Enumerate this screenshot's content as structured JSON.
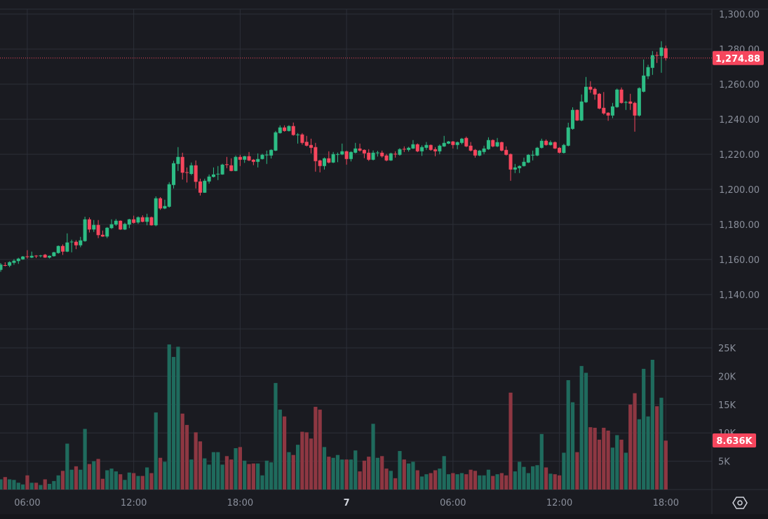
{
  "chart_data": {
    "type": "candlestick",
    "interval": "15m",
    "price_axis": {
      "ticks": [
        "1,300.00",
        "1,280.00",
        "1,260.00",
        "1,240.00",
        "1,220.00",
        "1,200.00",
        "1,180.00",
        "1,160.00",
        "1,140.00"
      ],
      "tick_values": [
        1300,
        1280,
        1260,
        1240,
        1220,
        1200,
        1180,
        1160,
        1140
      ]
    },
    "volume_axis": {
      "ticks": [
        "25K",
        "20K",
        "15K",
        "10K",
        "5K"
      ],
      "tick_values": [
        25,
        20,
        15,
        10,
        5
      ],
      "unit": "K"
    },
    "time_axis": {
      "ticks": [
        "06:00",
        "12:00",
        "18:00",
        "7",
        "06:00",
        "12:00",
        "18:00"
      ],
      "tick_candle_index": [
        6,
        30,
        54,
        78,
        102,
        126,
        150
      ]
    },
    "last_price": 1274.88,
    "last_price_label": "1,274.88",
    "last_volume_label": "8.636K",
    "colors": {
      "up": "#2dbd85",
      "down": "#f6465d",
      "vol_up": "#1f6b5d",
      "vol_down": "#8e3742",
      "background": "#1a1b21",
      "grid": "#2c2f38"
    },
    "candles_ohlc": [
      [
        1154.1,
        1158,
        1153,
        1157.1
      ],
      [
        1156.8,
        1158.4,
        1156.1,
        1156.5
      ],
      [
        1156.5,
        1159,
        1155.6,
        1158.5
      ],
      [
        1158.1,
        1160.2,
        1157,
        1159.3
      ],
      [
        1159.1,
        1161,
        1157.5,
        1160.5
      ],
      [
        1160.1,
        1162,
        1159.8,
        1161.7
      ],
      [
        1161.8,
        1165.3,
        1160.5,
        1161.5
      ],
      [
        1161.1,
        1164.5,
        1160.8,
        1162.1
      ],
      [
        1162.2,
        1162.5,
        1160.8,
        1161.8
      ],
      [
        1162.0,
        1162.6,
        1161.2,
        1162.3
      ],
      [
        1162.7,
        1163.2,
        1160.9,
        1161.1
      ],
      [
        1161.1,
        1162.3,
        1160.6,
        1162.1
      ],
      [
        1161.9,
        1164.4,
        1161.6,
        1164.1
      ],
      [
        1163.7,
        1168,
        1163.3,
        1167.7
      ],
      [
        1167.7,
        1168.6,
        1162.6,
        1164.5
      ],
      [
        1164.5,
        1174.9,
        1164.2,
        1169.7
      ],
      [
        1170.0,
        1171.3,
        1164.1,
        1170.2
      ],
      [
        1170.1,
        1171,
        1165.9,
        1168.1
      ],
      [
        1168.1,
        1172.9,
        1167,
        1170.9
      ],
      [
        1170.5,
        1184.4,
        1170.1,
        1182.9
      ],
      [
        1182.9,
        1184,
        1175.4,
        1177.1
      ],
      [
        1177.1,
        1182.5,
        1175.7,
        1179.7
      ],
      [
        1179.7,
        1182.5,
        1172.2,
        1173.9
      ],
      [
        1174.1,
        1176.5,
        1172.9,
        1173.1
      ],
      [
        1173.1,
        1178.5,
        1172.2,
        1178.1
      ],
      [
        1177.9,
        1182.9,
        1177.4,
        1180.1
      ],
      [
        1179.9,
        1183.1,
        1179.2,
        1182.1
      ],
      [
        1182.1,
        1182.3,
        1176.9,
        1177.1
      ],
      [
        1177.1,
        1181,
        1176.8,
        1180.3
      ],
      [
        1179.9,
        1183.2,
        1177.9,
        1182.9
      ],
      [
        1182.9,
        1185,
        1180.5,
        1180.9
      ],
      [
        1181.1,
        1184.6,
        1180.3,
        1184.1
      ],
      [
        1184.1,
        1185.2,
        1181.2,
        1181.5
      ],
      [
        1181.5,
        1186.1,
        1179.5,
        1184.1
      ],
      [
        1184.1,
        1184.5,
        1179.3,
        1179.5
      ],
      [
        1179.5,
        1196,
        1179,
        1194.9
      ],
      [
        1194.9,
        1195.6,
        1188.3,
        1189.1
      ],
      [
        1189.1,
        1194.1,
        1188.7,
        1190.5
      ],
      [
        1190.1,
        1204.1,
        1189.6,
        1202.9
      ],
      [
        1202.5,
        1216.3,
        1200.5,
        1214.9
      ],
      [
        1214.5,
        1224.1,
        1210.5,
        1218.5
      ],
      [
        1218.5,
        1220.9,
        1205.6,
        1209.5
      ],
      [
        1209.8,
        1212.5,
        1203.9,
        1209.4
      ],
      [
        1208.8,
        1215.3,
        1208.1,
        1213.7
      ],
      [
        1213.7,
        1216.5,
        1200.5,
        1204.3
      ],
      [
        1204.5,
        1206.1,
        1196.5,
        1198.1
      ],
      [
        1198.1,
        1206.1,
        1198,
        1204.9
      ],
      [
        1204.5,
        1208.5,
        1203.3,
        1207.3
      ],
      [
        1207.1,
        1212.5,
        1206.8,
        1208.5
      ],
      [
        1208.7,
        1213.3,
        1205.3,
        1208.9
      ],
      [
        1208.5,
        1214.6,
        1208.3,
        1214.1
      ],
      [
        1214.3,
        1218.5,
        1212.1,
        1214.1
      ],
      [
        1213.7,
        1217.7,
        1210.3,
        1210.5
      ],
      [
        1210.5,
        1219.3,
        1210.3,
        1218.5
      ],
      [
        1218.5,
        1219.7,
        1213.3,
        1216.9
      ],
      [
        1216.9,
        1219.1,
        1215.1,
        1218.9
      ],
      [
        1218.9,
        1221.3,
        1216.1,
        1216.5
      ],
      [
        1216.9,
        1217.3,
        1213.8,
        1215.7
      ],
      [
        1215.7,
        1220.5,
        1212.5,
        1217.3
      ],
      [
        1217.3,
        1220.3,
        1217,
        1219.7
      ],
      [
        1219.6,
        1222.1,
        1214.5,
        1219.8
      ],
      [
        1219.3,
        1222.9,
        1217.6,
        1222.5
      ],
      [
        1222.1,
        1233.3,
        1221.8,
        1232.5
      ],
      [
        1232.1,
        1236.5,
        1231.8,
        1235.3
      ],
      [
        1235.3,
        1236.5,
        1232.9,
        1233.3
      ],
      [
        1233.3,
        1236.6,
        1233,
        1236.1
      ],
      [
        1236.1,
        1238.1,
        1230.6,
        1231.0
      ],
      [
        1231.1,
        1232.1,
        1226.1,
        1231.3
      ],
      [
        1231.3,
        1232.1,
        1225.5,
        1226.5
      ],
      [
        1227.1,
        1230.5,
        1224.5,
        1224.9
      ],
      [
        1225.3,
        1228.9,
        1220.5,
        1223.7
      ],
      [
        1224.1,
        1226.5,
        1210.1,
        1216.1
      ],
      [
        1216.5,
        1216.9,
        1209.7,
        1213.3
      ],
      [
        1213.3,
        1218.2,
        1211.3,
        1217.7
      ],
      [
        1217.7,
        1221.7,
        1214.8,
        1215.3
      ],
      [
        1215.3,
        1221.3,
        1215,
        1220.1
      ],
      [
        1219.9,
        1221,
        1215.5,
        1220.1
      ],
      [
        1219.9,
        1226.1,
        1219.5,
        1221.7
      ],
      [
        1221.7,
        1222.1,
        1214.1,
        1217.3
      ],
      [
        1217.3,
        1221.7,
        1215.9,
        1221.3
      ],
      [
        1220.9,
        1226.5,
        1220.5,
        1223.3
      ],
      [
        1223.3,
        1226.1,
        1221.5,
        1222.1
      ],
      [
        1222.5,
        1222.8,
        1217.8,
        1220.5
      ],
      [
        1220.9,
        1222.9,
        1216.2,
        1216.9
      ],
      [
        1216.9,
        1222.2,
        1216.5,
        1220.9
      ],
      [
        1220.8,
        1222,
        1218.7,
        1221.0
      ],
      [
        1220.9,
        1222.1,
        1218.1,
        1218.9
      ],
      [
        1219.3,
        1220.2,
        1216,
        1216.5
      ],
      [
        1216.5,
        1220.9,
        1216.2,
        1220.5
      ],
      [
        1220.3,
        1221.7,
        1218.1,
        1220.1
      ],
      [
        1219.7,
        1223.5,
        1219.2,
        1222.9
      ],
      [
        1223.1,
        1224.5,
        1221.3,
        1222.9
      ],
      [
        1222.5,
        1224.3,
        1221.5,
        1223.7
      ],
      [
        1223.3,
        1228.1,
        1223,
        1225.7
      ],
      [
        1225.7,
        1226.2,
        1221.2,
        1221.7
      ],
      [
        1221.7,
        1225.1,
        1219.1,
        1224.1
      ],
      [
        1223.7,
        1227,
        1222.5,
        1225.3
      ],
      [
        1225.3,
        1225.6,
        1222,
        1222.5
      ],
      [
        1222.9,
        1224.1,
        1218.9,
        1221.7
      ],
      [
        1221.7,
        1225.6,
        1220.1,
        1224.9
      ],
      [
        1224.5,
        1230.5,
        1224.2,
        1226.5
      ],
      [
        1226.1,
        1227.6,
        1225.8,
        1227.3
      ],
      [
        1227.3,
        1227.6,
        1223.3,
        1225.3
      ],
      [
        1225.3,
        1227.3,
        1222.9,
        1226.9
      ],
      [
        1226.5,
        1229.3,
        1225.7,
        1228.9
      ],
      [
        1229.3,
        1230.1,
        1224.1,
        1224.5
      ],
      [
        1224.9,
        1227,
        1221.6,
        1222.1
      ],
      [
        1222.5,
        1223,
        1218.1,
        1219.3
      ],
      [
        1219.3,
        1222.5,
        1218.9,
        1222.1
      ],
      [
        1221.3,
        1224.9,
        1220.1,
        1223.3
      ],
      [
        1222.9,
        1229.7,
        1222.5,
        1228.1
      ],
      [
        1228.1,
        1228.5,
        1224,
        1224.5
      ],
      [
        1224.5,
        1229.3,
        1224.1,
        1226.9
      ],
      [
        1226.9,
        1227.2,
        1221.7,
        1222.1
      ],
      [
        1222.5,
        1224.5,
        1219.3,
        1219.7
      ],
      [
        1220.1,
        1220.5,
        1204.9,
        1211.3
      ],
      [
        1211.3,
        1214.5,
        1209.3,
        1212.5
      ],
      [
        1212.1,
        1213.7,
        1209.3,
        1213.3
      ],
      [
        1213.3,
        1218.1,
        1213,
        1215.7
      ],
      [
        1215.3,
        1220.1,
        1215,
        1219.7
      ],
      [
        1219.5,
        1222.1,
        1216.5,
        1219.7
      ],
      [
        1219.3,
        1224.2,
        1218.9,
        1223.7
      ],
      [
        1223.7,
        1228.9,
        1223.3,
        1227.7
      ],
      [
        1227.7,
        1228.5,
        1224.9,
        1225.3
      ],
      [
        1225.3,
        1227.9,
        1225,
        1226.9
      ],
      [
        1226.9,
        1227.3,
        1223,
        1223.3
      ],
      [
        1223.7,
        1224.1,
        1220.5,
        1220.9
      ],
      [
        1220.8,
        1226,
        1220.4,
        1225.3
      ],
      [
        1224.9,
        1238,
        1224.5,
        1235.3
      ],
      [
        1234.5,
        1246.8,
        1234,
        1245.3
      ],
      [
        1245.3,
        1245.6,
        1239,
        1239.3
      ],
      [
        1239.3,
        1254.1,
        1238.9,
        1250.1
      ],
      [
        1249.7,
        1264.1,
        1249.3,
        1258.5
      ],
      [
        1258.5,
        1261.7,
        1255,
        1256.9
      ],
      [
        1257.3,
        1258.1,
        1251.1,
        1254.1
      ],
      [
        1254.5,
        1254.9,
        1245.7,
        1246.1
      ],
      [
        1246.5,
        1255.5,
        1242.6,
        1243.3
      ],
      [
        1243.7,
        1244,
        1239.1,
        1242.1
      ],
      [
        1242.1,
        1249.3,
        1240.6,
        1247.3
      ],
      [
        1246.9,
        1257.5,
        1246.5,
        1256.9
      ],
      [
        1256.9,
        1258.1,
        1248.9,
        1249.3
      ],
      [
        1249.6,
        1250.5,
        1245.3,
        1249.8
      ],
      [
        1250.1,
        1254.5,
        1245.3,
        1248.9
      ],
      [
        1249.3,
        1250,
        1232.9,
        1242.1
      ],
      [
        1242.1,
        1258.2,
        1241.5,
        1257.7
      ],
      [
        1255.7,
        1274.1,
        1255.3,
        1264.9
      ],
      [
        1264.5,
        1271.1,
        1262.9,
        1269.7
      ],
      [
        1269.3,
        1278.9,
        1265.3,
        1276.5
      ],
      [
        1276.6,
        1278.5,
        1272.1,
        1276.4
      ],
      [
        1276.1,
        1284.5,
        1266.5,
        1280.9
      ],
      [
        1280.5,
        1282,
        1273.5,
        1274.88
      ]
    ],
    "volumes_k": [
      1.8,
      2.2,
      1.8,
      1.7,
      1.2,
      0.9,
      2.5,
      1.2,
      1.2,
      0.8,
      1.8,
      1.0,
      1.5,
      2.5,
      3.3,
      8.1,
      3.5,
      4.1,
      3.5,
      10.7,
      4.5,
      5.0,
      5.4,
      1.9,
      3.4,
      3.7,
      3.2,
      2.7,
      1.7,
      3.0,
      2.9,
      2.4,
      2.4,
      3.9,
      2.9,
      13.6,
      5.6,
      4.9,
      25.6,
      23.4,
      25.2,
      13.4,
      11.4,
      5.3,
      10.1,
      8.5,
      5.5,
      4.4,
      6.6,
      6.6,
      4.4,
      5.9,
      5.3,
      7.3,
      7.5,
      5.1,
      4.5,
      4.6,
      4.6,
      2.5,
      5.1,
      4.8,
      18.8,
      14.1,
      12.9,
      6.6,
      6.1,
      7.9,
      10.2,
      10.1,
      9.0,
      14.6,
      14.1,
      7.5,
      5.8,
      5.6,
      6.1,
      5.3,
      5.3,
      5.3,
      6.9,
      3.2,
      5.1,
      5.8,
      11.6,
      5.6,
      5.9,
      3.7,
      3.3,
      2.0,
      6.8,
      5.3,
      4.6,
      4.9,
      3.4,
      2.3,
      2.7,
      2.9,
      3.4,
      3.7,
      5.9,
      2.7,
      2.9,
      2.7,
      2.9,
      2.7,
      3.5,
      3.3,
      2.5,
      2.5,
      3.5,
      2.4,
      2.7,
      2.9,
      2.5,
      17.1,
      3.2,
      4.9,
      4.0,
      2.9,
      4.1,
      4.3,
      9.8,
      3.9,
      2.8,
      2.7,
      2.5,
      6.5,
      19.3,
      15.4,
      6.6,
      21.8,
      20.6,
      11.0,
      10.9,
      8.8,
      10.9,
      10.4,
      7.4,
      9.6,
      8.8,
      6.5,
      15.0,
      17.0,
      12.4,
      21.3,
      12.9,
      22.9,
      14.7,
      16.2,
      8.636
    ]
  }
}
